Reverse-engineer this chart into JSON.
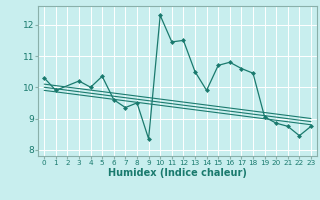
{
  "title": "",
  "xlabel": "Humidex (Indice chaleur)",
  "bg_color": "#c8eeee",
  "line_color": "#1a7a6e",
  "grid_color": "#ffffff",
  "spine_color": "#8ab0aa",
  "xlim": [
    -0.5,
    23.5
  ],
  "ylim": [
    7.8,
    12.6
  ],
  "yticks": [
    8,
    9,
    10,
    11,
    12
  ],
  "xticks": [
    0,
    1,
    2,
    3,
    4,
    5,
    6,
    7,
    8,
    9,
    10,
    11,
    12,
    13,
    14,
    15,
    16,
    17,
    18,
    19,
    20,
    21,
    22,
    23
  ],
  "main_series_x": [
    0,
    1,
    3,
    4,
    5,
    6,
    7,
    8,
    9,
    10,
    11,
    12,
    13,
    14,
    15,
    16,
    17,
    18,
    19,
    20,
    21,
    22,
    23
  ],
  "main_series_y": [
    10.3,
    9.9,
    10.2,
    10.0,
    10.35,
    9.6,
    9.35,
    9.5,
    8.35,
    12.3,
    11.45,
    11.5,
    10.5,
    9.9,
    10.7,
    10.8,
    10.6,
    10.45,
    9.05,
    8.85,
    8.75,
    8.45,
    8.75
  ],
  "trend_lines": [
    {
      "x0": 0,
      "y0": 10.1,
      "x1": 23,
      "y1": 9.0
    },
    {
      "x0": 0,
      "y0": 10.0,
      "x1": 23,
      "y1": 8.9
    },
    {
      "x0": 0,
      "y0": 9.9,
      "x1": 23,
      "y1": 8.8
    }
  ]
}
